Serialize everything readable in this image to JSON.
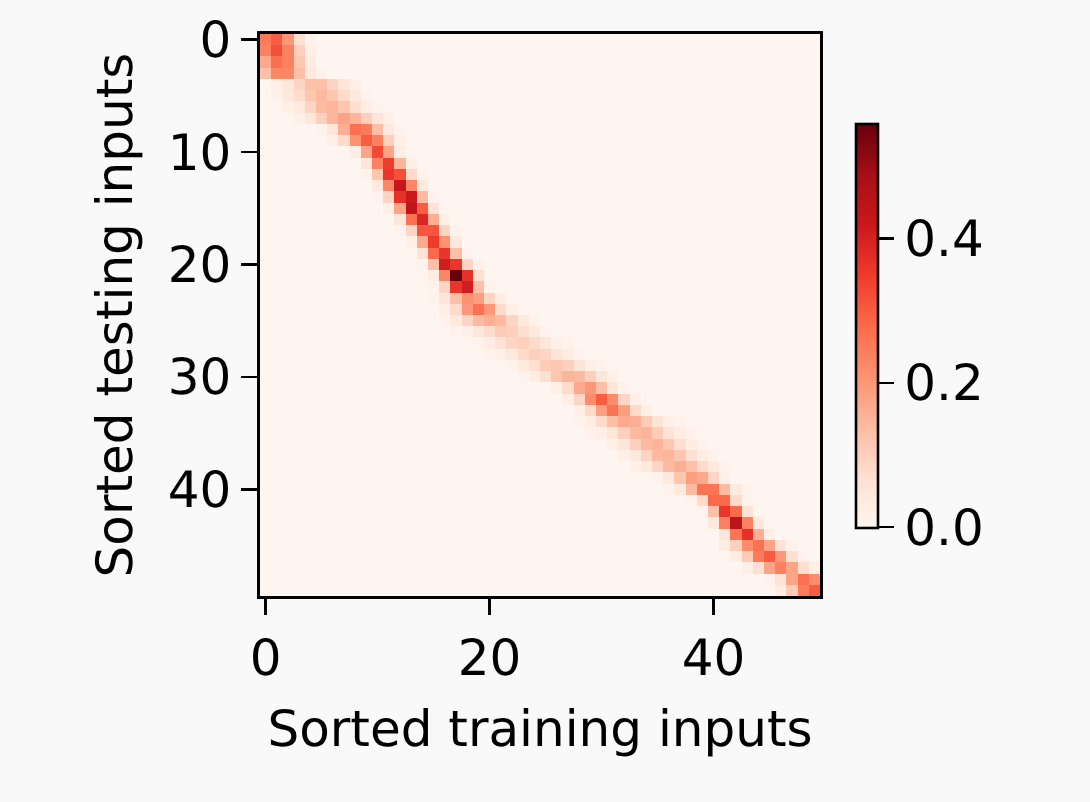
{
  "chart_data": {
    "type": "heatmap",
    "xlabel": "Sorted training inputs",
    "ylabel": "Sorted testing inputs",
    "categories": [
      "0",
      null,
      null,
      null,
      null,
      null,
      null,
      null,
      null,
      null,
      null,
      null,
      null,
      null,
      null,
      null,
      null,
      null,
      null,
      null,
      "20",
      null,
      null,
      null,
      null,
      null,
      null,
      null,
      null,
      null,
      null,
      null,
      null,
      null,
      null,
      null,
      null,
      null,
      null,
      null,
      "40",
      null,
      null,
      null,
      null,
      null,
      null,
      null,
      null,
      null
    ],
    "y_categories": [
      "0",
      null,
      null,
      null,
      null,
      null,
      null,
      null,
      null,
      null,
      "10",
      null,
      null,
      null,
      null,
      null,
      null,
      null,
      null,
      null,
      "20",
      null,
      null,
      null,
      null,
      null,
      null,
      null,
      null,
      null,
      "30",
      null,
      null,
      null,
      null,
      null,
      null,
      null,
      null,
      null,
      "40",
      null,
      null,
      null,
      null,
      null,
      null,
      null,
      null,
      null
    ],
    "clim": [
      0,
      0.56
    ],
    "cticks": [
      {
        "value": 0,
        "label": "0.0"
      },
      {
        "value": 0.2,
        "label": "0.2"
      },
      {
        "value": 0.4,
        "label": "0.4"
      }
    ],
    "cells": [
      [
        0.25,
        0.3,
        0.2,
        0.07,
        0.01,
        0,
        0,
        0,
        0,
        0,
        0,
        0,
        0,
        0,
        0,
        0,
        0,
        0,
        0,
        0,
        0,
        0,
        0,
        0,
        0,
        0,
        0,
        0,
        0,
        0,
        0,
        0,
        0,
        0,
        0,
        0,
        0,
        0,
        0,
        0,
        0,
        0,
        0,
        0,
        0,
        0,
        0,
        0,
        0,
        0
      ],
      [
        0.24,
        0.32,
        0.24,
        0.1,
        0.02,
        0,
        0,
        0,
        0,
        0,
        0,
        0,
        0,
        0,
        0,
        0,
        0,
        0,
        0,
        0,
        0,
        0,
        0,
        0,
        0,
        0,
        0,
        0,
        0,
        0,
        0,
        0,
        0,
        0,
        0,
        0,
        0,
        0,
        0,
        0,
        0,
        0,
        0,
        0,
        0,
        0,
        0,
        0,
        0,
        0
      ],
      [
        0.17,
        0.27,
        0.24,
        0.12,
        0.03,
        0,
        0,
        0,
        0,
        0,
        0,
        0,
        0,
        0,
        0,
        0,
        0,
        0,
        0,
        0,
        0,
        0,
        0,
        0,
        0,
        0,
        0,
        0,
        0,
        0,
        0,
        0,
        0,
        0,
        0,
        0,
        0,
        0,
        0,
        0,
        0,
        0,
        0,
        0,
        0,
        0,
        0,
        0,
        0,
        0
      ],
      [
        0.13,
        0.23,
        0.23,
        0.13,
        0.04,
        0.01,
        0,
        0,
        0,
        0,
        0,
        0,
        0,
        0,
        0,
        0,
        0,
        0,
        0,
        0,
        0,
        0,
        0,
        0,
        0,
        0,
        0,
        0,
        0,
        0,
        0,
        0,
        0,
        0,
        0,
        0,
        0,
        0,
        0,
        0,
        0,
        0,
        0,
        0,
        0,
        0,
        0,
        0,
        0,
        0
      ],
      [
        0,
        0.02,
        0.05,
        0.09,
        0.13,
        0.13,
        0.09,
        0.05,
        0.02,
        0,
        0,
        0,
        0,
        0,
        0,
        0,
        0,
        0,
        0,
        0,
        0,
        0,
        0,
        0,
        0,
        0,
        0,
        0,
        0,
        0,
        0,
        0,
        0,
        0,
        0,
        0,
        0,
        0,
        0,
        0,
        0,
        0,
        0,
        0,
        0,
        0,
        0,
        0,
        0,
        0
      ],
      [
        0,
        0.01,
        0.04,
        0.08,
        0.12,
        0.14,
        0.12,
        0.08,
        0.04,
        0.01,
        0,
        0,
        0,
        0,
        0,
        0,
        0,
        0,
        0,
        0,
        0,
        0,
        0,
        0,
        0,
        0,
        0,
        0,
        0,
        0,
        0,
        0,
        0,
        0,
        0,
        0,
        0,
        0,
        0,
        0,
        0,
        0,
        0,
        0,
        0,
        0,
        0,
        0,
        0,
        0
      ],
      [
        0,
        0,
        0.02,
        0.04,
        0.09,
        0.14,
        0.15,
        0.12,
        0.07,
        0.03,
        0.01,
        0,
        0,
        0,
        0,
        0,
        0,
        0,
        0,
        0,
        0,
        0,
        0,
        0,
        0,
        0,
        0,
        0,
        0,
        0,
        0,
        0,
        0,
        0,
        0,
        0,
        0,
        0,
        0,
        0,
        0,
        0,
        0,
        0,
        0,
        0,
        0,
        0,
        0,
        0
      ],
      [
        0,
        0,
        0,
        0.02,
        0.05,
        0.1,
        0.15,
        0.18,
        0.15,
        0.1,
        0.05,
        0.02,
        0,
        0,
        0,
        0,
        0,
        0,
        0,
        0,
        0,
        0,
        0,
        0,
        0,
        0,
        0,
        0,
        0,
        0,
        0,
        0,
        0,
        0,
        0,
        0,
        0,
        0,
        0,
        0,
        0,
        0,
        0,
        0,
        0,
        0,
        0,
        0,
        0,
        0
      ],
      [
        0,
        0,
        0,
        0,
        0,
        0.01,
        0.05,
        0.16,
        0.27,
        0.25,
        0.13,
        0.04,
        0.01,
        0,
        0,
        0,
        0,
        0,
        0,
        0,
        0,
        0,
        0,
        0,
        0,
        0,
        0,
        0,
        0,
        0,
        0,
        0,
        0,
        0,
        0,
        0,
        0,
        0,
        0,
        0,
        0,
        0,
        0,
        0,
        0,
        0,
        0,
        0,
        0,
        0
      ],
      [
        0,
        0,
        0,
        0,
        0,
        0,
        0.02,
        0.08,
        0.21,
        0.3,
        0.24,
        0.1,
        0.02,
        0,
        0,
        0,
        0,
        0,
        0,
        0,
        0,
        0,
        0,
        0,
        0,
        0,
        0,
        0,
        0,
        0,
        0,
        0,
        0,
        0,
        0,
        0,
        0,
        0,
        0,
        0,
        0,
        0,
        0,
        0,
        0,
        0,
        0,
        0,
        0,
        0
      ],
      [
        0,
        0,
        0,
        0,
        0,
        0,
        0,
        0,
        0.03,
        0.18,
        0.33,
        0.18,
        0.03,
        0,
        0,
        0,
        0,
        0,
        0,
        0,
        0,
        0,
        0,
        0,
        0,
        0,
        0,
        0,
        0,
        0,
        0,
        0,
        0,
        0,
        0,
        0,
        0,
        0,
        0,
        0,
        0,
        0,
        0,
        0,
        0,
        0,
        0,
        0,
        0,
        0
      ],
      [
        0,
        0,
        0,
        0,
        0,
        0,
        0,
        0,
        0,
        0.05,
        0.24,
        0.35,
        0.15,
        0.02,
        0,
        0,
        0,
        0,
        0,
        0,
        0,
        0,
        0,
        0,
        0,
        0,
        0,
        0,
        0,
        0,
        0,
        0,
        0,
        0,
        0,
        0,
        0,
        0,
        0,
        0,
        0,
        0,
        0,
        0,
        0,
        0,
        0,
        0,
        0,
        0
      ],
      [
        0,
        0,
        0,
        0,
        0,
        0,
        0,
        0,
        0,
        0.01,
        0.12,
        0.36,
        0.32,
        0.08,
        0.01,
        0,
        0,
        0,
        0,
        0,
        0,
        0,
        0,
        0,
        0,
        0,
        0,
        0,
        0,
        0,
        0,
        0,
        0,
        0,
        0,
        0,
        0,
        0,
        0,
        0,
        0,
        0,
        0,
        0,
        0,
        0,
        0,
        0,
        0,
        0
      ],
      [
        0,
        0,
        0,
        0,
        0,
        0,
        0,
        0,
        0,
        0,
        0.04,
        0.23,
        0.43,
        0.23,
        0.04,
        0,
        0,
        0,
        0,
        0,
        0,
        0,
        0,
        0,
        0,
        0,
        0,
        0,
        0,
        0,
        0,
        0,
        0,
        0,
        0,
        0,
        0,
        0,
        0,
        0,
        0,
        0,
        0,
        0,
        0,
        0,
        0,
        0,
        0,
        0
      ],
      [
        0,
        0,
        0,
        0,
        0,
        0,
        0,
        0,
        0,
        0,
        0.01,
        0.09,
        0.37,
        0.42,
        0.14,
        0.01,
        0,
        0,
        0,
        0,
        0,
        0,
        0,
        0,
        0,
        0,
        0,
        0,
        0,
        0,
        0,
        0,
        0,
        0,
        0,
        0,
        0,
        0,
        0,
        0,
        0,
        0,
        0,
        0,
        0,
        0,
        0,
        0,
        0,
        0
      ],
      [
        0,
        0,
        0,
        0,
        0,
        0,
        0,
        0,
        0,
        0,
        0,
        0.02,
        0.18,
        0.44,
        0.3,
        0.06,
        0,
        0,
        0,
        0,
        0,
        0,
        0,
        0,
        0,
        0,
        0,
        0,
        0,
        0,
        0,
        0,
        0,
        0,
        0,
        0,
        0,
        0,
        0,
        0,
        0,
        0,
        0,
        0,
        0,
        0,
        0,
        0,
        0,
        0
      ],
      [
        0,
        0,
        0,
        0,
        0,
        0,
        0,
        0,
        0,
        0,
        0,
        0,
        0.05,
        0.27,
        0.39,
        0.16,
        0.02,
        0,
        0,
        0,
        0,
        0,
        0,
        0,
        0,
        0,
        0,
        0,
        0,
        0,
        0,
        0,
        0,
        0,
        0,
        0,
        0,
        0,
        0,
        0,
        0,
        0,
        0,
        0,
        0,
        0,
        0,
        0,
        0,
        0
      ],
      [
        0,
        0,
        0,
        0,
        0,
        0,
        0,
        0,
        0,
        0,
        0,
        0,
        0.01,
        0.09,
        0.31,
        0.31,
        0.09,
        0.01,
        0,
        0,
        0,
        0,
        0,
        0,
        0,
        0,
        0,
        0,
        0,
        0,
        0,
        0,
        0,
        0,
        0,
        0,
        0,
        0,
        0,
        0,
        0,
        0,
        0,
        0,
        0,
        0,
        0,
        0,
        0,
        0
      ],
      [
        0,
        0,
        0,
        0,
        0,
        0,
        0,
        0,
        0,
        0,
        0,
        0,
        0,
        0.02,
        0.17,
        0.35,
        0.21,
        0.04,
        0,
        0,
        0,
        0,
        0,
        0,
        0,
        0,
        0,
        0,
        0,
        0,
        0,
        0,
        0,
        0,
        0,
        0,
        0,
        0,
        0,
        0,
        0,
        0,
        0,
        0,
        0,
        0,
        0,
        0,
        0,
        0
      ],
      [
        0,
        0,
        0,
        0,
        0,
        0,
        0,
        0,
        0,
        0,
        0,
        0,
        0,
        0,
        0.06,
        0.28,
        0.36,
        0.13,
        0.01,
        0,
        0,
        0,
        0,
        0,
        0,
        0,
        0,
        0,
        0,
        0,
        0,
        0,
        0,
        0,
        0,
        0,
        0,
        0,
        0,
        0,
        0,
        0,
        0,
        0,
        0,
        0,
        0,
        0,
        0,
        0
      ],
      [
        0,
        0,
        0,
        0,
        0,
        0,
        0,
        0,
        0,
        0,
        0,
        0,
        0,
        0,
        0.01,
        0.13,
        0.41,
        0.36,
        0.09,
        0.01,
        0,
        0,
        0,
        0,
        0,
        0,
        0,
        0,
        0,
        0,
        0,
        0,
        0,
        0,
        0,
        0,
        0,
        0,
        0,
        0,
        0,
        0,
        0,
        0,
        0,
        0,
        0,
        0,
        0,
        0
      ],
      [
        0,
        0,
        0,
        0,
        0,
        0,
        0,
        0,
        0,
        0,
        0,
        0,
        0,
        0,
        0,
        0.03,
        0.23,
        0.56,
        0.37,
        0.07,
        0,
        0,
        0,
        0,
        0,
        0,
        0,
        0,
        0,
        0,
        0,
        0,
        0,
        0,
        0,
        0,
        0,
        0,
        0,
        0,
        0,
        0,
        0,
        0,
        0,
        0,
        0,
        0,
        0,
        0
      ],
      [
        0,
        0,
        0,
        0,
        0,
        0,
        0,
        0,
        0,
        0,
        0,
        0,
        0,
        0,
        0,
        0.01,
        0.09,
        0.36,
        0.41,
        0.13,
        0.01,
        0,
        0,
        0,
        0,
        0,
        0,
        0,
        0,
        0,
        0,
        0,
        0,
        0,
        0,
        0,
        0,
        0,
        0,
        0,
        0,
        0,
        0,
        0,
        0,
        0,
        0,
        0,
        0,
        0
      ],
      [
        0,
        0,
        0,
        0,
        0,
        0,
        0,
        0,
        0,
        0,
        0,
        0,
        0,
        0,
        0,
        0.01,
        0.05,
        0.13,
        0.21,
        0.19,
        0.09,
        0.03,
        0,
        0,
        0,
        0,
        0,
        0,
        0,
        0,
        0,
        0,
        0,
        0,
        0,
        0,
        0,
        0,
        0,
        0,
        0,
        0,
        0,
        0,
        0,
        0,
        0,
        0,
        0,
        0
      ],
      [
        0,
        0,
        0,
        0,
        0,
        0,
        0,
        0,
        0,
        0,
        0,
        0,
        0,
        0,
        0,
        0,
        0.02,
        0.08,
        0.2,
        0.27,
        0.2,
        0.08,
        0.02,
        0,
        0,
        0,
        0,
        0,
        0,
        0,
        0,
        0,
        0,
        0,
        0,
        0,
        0,
        0,
        0,
        0,
        0,
        0,
        0,
        0,
        0,
        0,
        0,
        0,
        0,
        0
      ],
      [
        0,
        0,
        0,
        0,
        0,
        0,
        0,
        0,
        0,
        0,
        0,
        0,
        0,
        0,
        0,
        0,
        0.01,
        0.04,
        0.09,
        0.14,
        0.16,
        0.14,
        0.09,
        0.04,
        0.01,
        0,
        0,
        0,
        0,
        0,
        0,
        0,
        0,
        0,
        0,
        0,
        0,
        0,
        0,
        0,
        0,
        0,
        0,
        0,
        0,
        0,
        0,
        0,
        0,
        0
      ],
      [
        0,
        0,
        0,
        0,
        0,
        0,
        0,
        0,
        0,
        0,
        0,
        0,
        0,
        0,
        0,
        0,
        0,
        0.01,
        0.02,
        0.05,
        0.08,
        0.11,
        0.1,
        0.07,
        0.04,
        0.01,
        0,
        0,
        0,
        0,
        0,
        0,
        0,
        0,
        0,
        0,
        0,
        0,
        0,
        0,
        0,
        0,
        0,
        0,
        0,
        0,
        0,
        0,
        0,
        0
      ],
      [
        0,
        0,
        0,
        0,
        0,
        0,
        0,
        0,
        0,
        0,
        0,
        0,
        0,
        0,
        0,
        0,
        0,
        0,
        0,
        0.01,
        0.03,
        0.06,
        0.09,
        0.1,
        0.08,
        0.05,
        0.02,
        0.01,
        0,
        0,
        0,
        0,
        0,
        0,
        0,
        0,
        0,
        0,
        0,
        0,
        0,
        0,
        0,
        0,
        0,
        0,
        0,
        0,
        0,
        0
      ],
      [
        0,
        0,
        0,
        0,
        0,
        0,
        0,
        0,
        0,
        0,
        0,
        0,
        0,
        0,
        0,
        0,
        0,
        0,
        0,
        0,
        0.01,
        0.02,
        0.04,
        0.08,
        0.1,
        0.09,
        0.06,
        0.03,
        0.01,
        0,
        0,
        0,
        0,
        0,
        0,
        0,
        0,
        0,
        0,
        0,
        0,
        0,
        0,
        0,
        0,
        0,
        0,
        0,
        0,
        0
      ],
      [
        0,
        0,
        0,
        0,
        0,
        0,
        0,
        0,
        0,
        0,
        0,
        0,
        0,
        0,
        0,
        0,
        0,
        0,
        0,
        0,
        0,
        0,
        0.01,
        0.04,
        0.07,
        0.11,
        0.12,
        0.1,
        0.06,
        0.02,
        0.01,
        0,
        0,
        0,
        0,
        0,
        0,
        0,
        0,
        0,
        0,
        0,
        0,
        0,
        0,
        0,
        0,
        0,
        0,
        0
      ],
      [
        0,
        0,
        0,
        0,
        0,
        0,
        0,
        0,
        0,
        0,
        0,
        0,
        0,
        0,
        0,
        0,
        0,
        0,
        0,
        0,
        0,
        0,
        0,
        0.01,
        0.03,
        0.07,
        0.12,
        0.15,
        0.14,
        0.1,
        0.05,
        0.02,
        0,
        0,
        0,
        0,
        0,
        0,
        0,
        0,
        0,
        0,
        0,
        0,
        0,
        0,
        0,
        0,
        0,
        0
      ],
      [
        0,
        0,
        0,
        0,
        0,
        0,
        0,
        0,
        0,
        0,
        0,
        0,
        0,
        0,
        0,
        0,
        0,
        0,
        0,
        0,
        0,
        0,
        0,
        0,
        0,
        0,
        0.02,
        0.08,
        0.17,
        0.2,
        0.13,
        0.05,
        0.01,
        0,
        0,
        0,
        0,
        0,
        0,
        0,
        0,
        0,
        0,
        0,
        0,
        0,
        0,
        0,
        0,
        0
      ],
      [
        0,
        0,
        0,
        0,
        0,
        0,
        0,
        0,
        0,
        0,
        0,
        0,
        0,
        0,
        0,
        0,
        0,
        0,
        0,
        0,
        0,
        0,
        0,
        0,
        0,
        0,
        0,
        0.02,
        0.09,
        0.22,
        0.3,
        0.22,
        0.09,
        0.02,
        0,
        0,
        0,
        0,
        0,
        0,
        0,
        0,
        0,
        0,
        0,
        0,
        0,
        0,
        0,
        0
      ],
      [
        0,
        0,
        0,
        0,
        0,
        0,
        0,
        0,
        0,
        0,
        0,
        0,
        0,
        0,
        0,
        0,
        0,
        0,
        0,
        0,
        0,
        0,
        0,
        0,
        0,
        0,
        0,
        0,
        0.02,
        0.08,
        0.19,
        0.26,
        0.19,
        0.08,
        0.02,
        0,
        0,
        0,
        0,
        0,
        0,
        0,
        0,
        0,
        0,
        0,
        0,
        0,
        0,
        0
      ],
      [
        0,
        0,
        0,
        0,
        0,
        0,
        0,
        0,
        0,
        0,
        0,
        0,
        0,
        0,
        0,
        0,
        0,
        0,
        0,
        0,
        0,
        0,
        0,
        0,
        0,
        0,
        0,
        0,
        0.01,
        0.03,
        0.08,
        0.13,
        0.17,
        0.16,
        0.11,
        0.06,
        0.02,
        0.01,
        0,
        0,
        0,
        0,
        0,
        0,
        0,
        0,
        0,
        0,
        0,
        0
      ],
      [
        0,
        0,
        0,
        0,
        0,
        0,
        0,
        0,
        0,
        0,
        0,
        0,
        0,
        0,
        0,
        0,
        0,
        0,
        0,
        0,
        0,
        0,
        0,
        0,
        0,
        0,
        0,
        0,
        0,
        0.01,
        0.02,
        0.05,
        0.1,
        0.14,
        0.15,
        0.11,
        0.06,
        0.03,
        0.01,
        0,
        0,
        0,
        0,
        0,
        0,
        0,
        0,
        0,
        0,
        0
      ],
      [
        0,
        0,
        0,
        0,
        0,
        0,
        0,
        0,
        0,
        0,
        0,
        0,
        0,
        0,
        0,
        0,
        0,
        0,
        0,
        0,
        0,
        0,
        0,
        0,
        0,
        0,
        0,
        0,
        0,
        0,
        0,
        0.02,
        0.05,
        0.1,
        0.14,
        0.15,
        0.12,
        0.07,
        0.03,
        0.01,
        0,
        0,
        0,
        0,
        0,
        0,
        0,
        0,
        0,
        0
      ],
      [
        0,
        0,
        0,
        0,
        0,
        0,
        0,
        0,
        0,
        0,
        0,
        0,
        0,
        0,
        0,
        0,
        0,
        0,
        0,
        0,
        0,
        0,
        0,
        0,
        0,
        0,
        0,
        0,
        0,
        0,
        0,
        0,
        0.02,
        0.04,
        0.09,
        0.14,
        0.15,
        0.12,
        0.07,
        0.03,
        0.01,
        0,
        0,
        0,
        0,
        0,
        0,
        0,
        0,
        0
      ],
      [
        0,
        0,
        0,
        0,
        0,
        0,
        0,
        0,
        0,
        0,
        0,
        0,
        0,
        0,
        0,
        0,
        0,
        0,
        0,
        0,
        0,
        0,
        0,
        0,
        0,
        0,
        0,
        0,
        0,
        0,
        0,
        0,
        0,
        0.02,
        0.04,
        0.09,
        0.14,
        0.16,
        0.13,
        0.08,
        0.04,
        0.01,
        0,
        0,
        0,
        0,
        0,
        0,
        0,
        0
      ],
      [
        0,
        0,
        0,
        0,
        0,
        0,
        0,
        0,
        0,
        0,
        0,
        0,
        0,
        0,
        0,
        0,
        0,
        0,
        0,
        0,
        0,
        0,
        0,
        0,
        0,
        0,
        0,
        0,
        0,
        0,
        0,
        0,
        0,
        0,
        0,
        0.01,
        0.04,
        0.12,
        0.19,
        0.17,
        0.09,
        0.02,
        0,
        0,
        0,
        0,
        0,
        0,
        0,
        0
      ],
      [
        0,
        0,
        0,
        0,
        0,
        0,
        0,
        0,
        0,
        0,
        0,
        0,
        0,
        0,
        0,
        0,
        0,
        0,
        0,
        0,
        0,
        0,
        0,
        0,
        0,
        0,
        0,
        0,
        0,
        0,
        0,
        0,
        0,
        0,
        0,
        0,
        0.01,
        0.04,
        0.14,
        0.26,
        0.26,
        0.14,
        0.04,
        0.01,
        0,
        0,
        0,
        0,
        0,
        0
      ],
      [
        0,
        0,
        0,
        0,
        0,
        0,
        0,
        0,
        0,
        0,
        0,
        0,
        0,
        0,
        0,
        0,
        0,
        0,
        0,
        0,
        0,
        0,
        0,
        0,
        0,
        0,
        0,
        0,
        0,
        0,
        0,
        0,
        0,
        0,
        0,
        0,
        0,
        0,
        0.01,
        0.08,
        0.28,
        0.28,
        0.08,
        0.01,
        0,
        0,
        0,
        0,
        0,
        0
      ],
      [
        0,
        0,
        0,
        0,
        0,
        0,
        0,
        0,
        0,
        0,
        0,
        0,
        0,
        0,
        0,
        0,
        0,
        0,
        0,
        0,
        0,
        0,
        0,
        0,
        0,
        0,
        0,
        0,
        0,
        0,
        0,
        0,
        0,
        0,
        0,
        0,
        0,
        0,
        0,
        0.01,
        0.13,
        0.36,
        0.28,
        0.06,
        0,
        0,
        0,
        0,
        0,
        0
      ],
      [
        0,
        0,
        0,
        0,
        0,
        0,
        0,
        0,
        0,
        0,
        0,
        0,
        0,
        0,
        0,
        0,
        0,
        0,
        0,
        0,
        0,
        0,
        0,
        0,
        0,
        0,
        0,
        0,
        0,
        0,
        0,
        0,
        0,
        0,
        0,
        0,
        0,
        0,
        0,
        0,
        0.04,
        0.24,
        0.45,
        0.24,
        0.04,
        0,
        0,
        0,
        0,
        0
      ],
      [
        0,
        0,
        0,
        0,
        0,
        0,
        0,
        0,
        0,
        0,
        0,
        0,
        0,
        0,
        0,
        0,
        0,
        0,
        0,
        0,
        0,
        0,
        0,
        0,
        0,
        0,
        0,
        0,
        0,
        0,
        0,
        0,
        0,
        0,
        0,
        0,
        0,
        0,
        0,
        0,
        0,
        0.05,
        0.26,
        0.37,
        0.16,
        0.02,
        0,
        0,
        0,
        0
      ],
      [
        0,
        0,
        0,
        0,
        0,
        0,
        0,
        0,
        0,
        0,
        0,
        0,
        0,
        0,
        0,
        0,
        0,
        0,
        0,
        0,
        0,
        0,
        0,
        0,
        0,
        0,
        0,
        0,
        0,
        0,
        0,
        0,
        0,
        0,
        0,
        0,
        0,
        0,
        0,
        0,
        0,
        0.03,
        0.1,
        0.22,
        0.27,
        0.18,
        0.06,
        0.01,
        0,
        0
      ],
      [
        0,
        0,
        0,
        0,
        0,
        0,
        0,
        0,
        0,
        0,
        0,
        0,
        0,
        0,
        0,
        0,
        0,
        0,
        0,
        0,
        0,
        0,
        0,
        0,
        0,
        0,
        0,
        0,
        0,
        0,
        0,
        0,
        0,
        0,
        0,
        0,
        0,
        0,
        0,
        0,
        0,
        0,
        0.03,
        0.11,
        0.25,
        0.3,
        0.2,
        0.07,
        0.01,
        0
      ],
      [
        0,
        0,
        0,
        0,
        0,
        0,
        0,
        0,
        0,
        0,
        0,
        0,
        0,
        0,
        0,
        0,
        0,
        0,
        0,
        0,
        0,
        0,
        0,
        0,
        0,
        0,
        0,
        0,
        0,
        0,
        0,
        0,
        0,
        0,
        0,
        0,
        0,
        0,
        0,
        0,
        0,
        0,
        0,
        0.02,
        0.07,
        0.18,
        0.24,
        0.18,
        0.07,
        0.02
      ],
      [
        0,
        0,
        0,
        0,
        0,
        0,
        0,
        0,
        0,
        0,
        0,
        0,
        0,
        0,
        0,
        0,
        0,
        0,
        0,
        0,
        0,
        0,
        0,
        0,
        0,
        0,
        0,
        0,
        0,
        0,
        0,
        0,
        0,
        0,
        0,
        0,
        0,
        0,
        0,
        0,
        0,
        0,
        0,
        0,
        0,
        0.01,
        0.06,
        0.18,
        0.27,
        0.22
      ],
      [
        0,
        0,
        0,
        0,
        0,
        0,
        0,
        0,
        0,
        0,
        0,
        0,
        0,
        0,
        0,
        0,
        0,
        0,
        0,
        0,
        0,
        0,
        0,
        0,
        0,
        0,
        0,
        0,
        0,
        0,
        0,
        0,
        0,
        0,
        0,
        0,
        0,
        0,
        0,
        0,
        0,
        0,
        0,
        0,
        0,
        0,
        0.03,
        0.11,
        0.25,
        0.3
      ]
    ]
  }
}
